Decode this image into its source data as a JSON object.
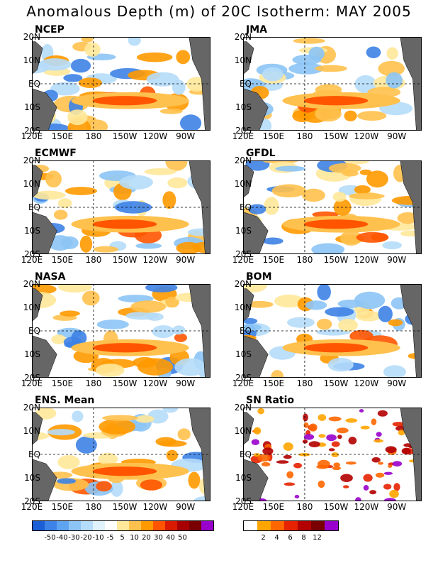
{
  "title": "Anomalous Depth (m) of 20C Isotherm: MAY 2005",
  "lat_labels": [
    "20N",
    "10N",
    "EQ",
    "10S",
    "20S"
  ],
  "lon_labels": [
    "120E",
    "150E",
    "180",
    "150W",
    "120W",
    "90W"
  ],
  "panels": [
    {
      "label": "NCEP"
    },
    {
      "label": "JMA"
    },
    {
      "label": "ECMWF"
    },
    {
      "label": "GFDL"
    },
    {
      "label": "NASA"
    },
    {
      "label": "BOM"
    },
    {
      "label": "ENS. Mean"
    },
    {
      "label": "SN Ratio"
    }
  ],
  "anomaly_colorbar": {
    "colors": [
      "#1a5fd6",
      "#3d82e6",
      "#5ea4f0",
      "#8cc4f5",
      "#b5dcfa",
      "#e0f2fc",
      "#ffffff",
      "#ffe89a",
      "#ffc14d",
      "#ff9900",
      "#ff5500",
      "#d91a00",
      "#a80000",
      "#7a0000",
      "#9900cc"
    ],
    "labels": [
      "-50",
      "-40",
      "-30",
      "-20",
      "-10",
      "-5",
      "5",
      "10",
      "20",
      "30",
      "40",
      "50"
    ]
  },
  "snratio_colorbar": {
    "colors": [
      "#ffffff",
      "#ffa500",
      "#ff6600",
      "#e62200",
      "#b30000",
      "#7a0000",
      "#9900cc"
    ],
    "labels": [
      "2",
      "4",
      "6",
      "8",
      "12"
    ]
  }
}
